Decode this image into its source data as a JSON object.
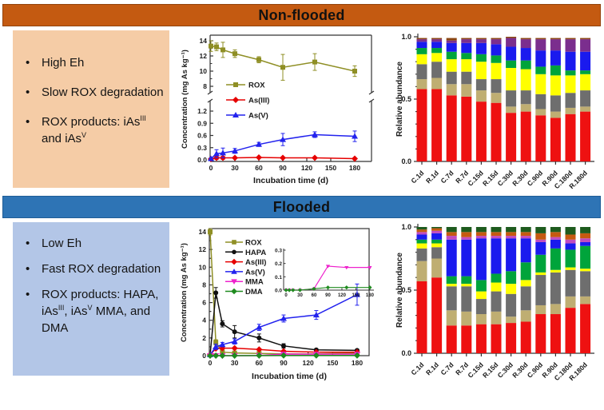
{
  "panels": {
    "nonflooded": {
      "title": "Non-flooded",
      "header_color": "#C45A11",
      "box_color": "#F5CCA6",
      "bullets": [
        [
          {
            "text": "High Eh"
          }
        ],
        [
          {
            "text": "Slow ROX degradation"
          }
        ],
        [
          {
            "text": "ROX products: iAs"
          },
          {
            "text": "III",
            "sup": true
          },
          {
            "text": " and iAs"
          },
          {
            "text": "V",
            "sup": true
          }
        ]
      ]
    },
    "flooded": {
      "title": "Flooded",
      "header_color": "#2E74B5",
      "box_color": "#B3C6E7",
      "bullets": [
        [
          {
            "text": "Low Eh"
          }
        ],
        [
          {
            "text": "Fast ROX degradation"
          }
        ],
        [
          {
            "text": "ROX products: HAPA, iAs"
          },
          {
            "text": "III",
            "sup": true
          },
          {
            "text": ", iAs"
          },
          {
            "text": "V",
            "sup": true
          },
          {
            "text": " MMA, and DMA"
          }
        ]
      ]
    }
  },
  "chart_data": [
    {
      "id": "nonflooded-line",
      "type": "line",
      "title": "",
      "xlabel": "Incubation time (d)",
      "ylabel": "Concentration (mg As kg⁻¹)",
      "x_ticks": [
        0,
        30,
        60,
        90,
        120,
        150,
        180
      ],
      "broken_axis": {
        "upper_ticks": [
          8,
          10,
          12,
          14
        ],
        "lower_ticks": [
          "0.0",
          "0.3",
          "0.6",
          "0.9",
          "1.2"
        ],
        "upper_range": [
          8,
          14
        ],
        "lower_range": [
          0,
          1.2
        ]
      },
      "x": [
        0,
        7,
        15,
        30,
        60,
        90,
        130,
        180
      ],
      "series": [
        {
          "name": "ROX",
          "color": "#8F8F25",
          "marker": "square",
          "values": [
            13.3,
            13.2,
            12.8,
            12.3,
            11.5,
            10.5,
            11.2,
            10.0
          ],
          "errors": [
            0.7,
            0.5,
            1.0,
            0.5,
            0.4,
            1.7,
            1.1,
            0.7
          ]
        },
        {
          "name": "As(III)",
          "color": "#E60000",
          "marker": "diamond",
          "values": [
            0.02,
            0.05,
            0.05,
            0.05,
            0.06,
            0.05,
            0.05,
            0.03
          ],
          "errors": [
            0.02,
            0.04,
            0.04,
            0.02,
            0.02,
            0.02,
            0.02,
            0.02
          ]
        },
        {
          "name": "As(V)",
          "color": "#2222EE",
          "marker": "triangle",
          "values": [
            0.03,
            0.15,
            0.17,
            0.22,
            0.38,
            0.5,
            0.62,
            0.58
          ],
          "errors": [
            0.02,
            0.1,
            0.12,
            0.06,
            0.05,
            0.15,
            0.07,
            0.13
          ]
        }
      ]
    },
    {
      "id": "nonflooded-bars",
      "type": "bar",
      "stacked": true,
      "ylabel": "Relative abundance",
      "y_ticks": [
        "0.0",
        "0.5",
        "1.0"
      ],
      "ylim": [
        0,
        1
      ],
      "categories": [
        "C.1d",
        "R.1d",
        "C.7d",
        "R.7d",
        "C.15d",
        "R.15d",
        "C.30d",
        "R.30d",
        "C.90d",
        "R.90d",
        "C.180d",
        "R.180d"
      ],
      "series": [
        {
          "name": "taxon-red",
          "color": "#EE1111",
          "values": [
            0.58,
            0.58,
            0.53,
            0.52,
            0.48,
            0.47,
            0.39,
            0.4,
            0.37,
            0.35,
            0.38,
            0.4
          ]
        },
        {
          "name": "taxon-tan",
          "color": "#BFAE72",
          "values": [
            0.08,
            0.09,
            0.09,
            0.1,
            0.09,
            0.08,
            0.05,
            0.06,
            0.05,
            0.05,
            0.05,
            0.04
          ]
        },
        {
          "name": "taxon-gray",
          "color": "#6E6E6E",
          "values": [
            0.12,
            0.13,
            0.1,
            0.1,
            0.09,
            0.11,
            0.13,
            0.11,
            0.12,
            0.13,
            0.12,
            0.13
          ]
        },
        {
          "name": "taxon-yellow",
          "color": "#FFFF00",
          "values": [
            0.08,
            0.07,
            0.1,
            0.1,
            0.14,
            0.13,
            0.18,
            0.17,
            0.16,
            0.16,
            0.14,
            0.13
          ]
        },
        {
          "name": "taxon-green",
          "color": "#00A43B",
          "values": [
            0.05,
            0.04,
            0.06,
            0.05,
            0.06,
            0.06,
            0.06,
            0.07,
            0.06,
            0.08,
            0.04,
            0.03
          ]
        },
        {
          "name": "taxon-blue",
          "color": "#1A1AEE",
          "values": [
            0.05,
            0.05,
            0.07,
            0.08,
            0.09,
            0.09,
            0.11,
            0.1,
            0.13,
            0.12,
            0.15,
            0.15
          ]
        },
        {
          "name": "taxon-purple",
          "color": "#7B2E8E",
          "values": [
            0.02,
            0.02,
            0.02,
            0.03,
            0.03,
            0.04,
            0.07,
            0.07,
            0.09,
            0.09,
            0.1,
            0.1
          ]
        },
        {
          "name": "taxon-brown",
          "color": "#8A4513",
          "values": [
            0.01,
            0.01,
            0.02,
            0.01,
            0.01,
            0.01,
            0.01,
            0.01,
            0.01,
            0.01,
            0.01,
            0.01
          ]
        }
      ]
    },
    {
      "id": "flooded-line",
      "type": "line",
      "title": "",
      "xlabel": "Incubation time (d)",
      "ylabel": "Concentration (mg As kg⁻¹)",
      "x_ticks": [
        0,
        30,
        60,
        90,
        120,
        150,
        180
      ],
      "y_ticks": [
        0,
        2,
        4,
        6,
        8,
        10,
        12,
        14
      ],
      "ylim": [
        0,
        14
      ],
      "x": [
        0,
        7,
        15,
        30,
        60,
        90,
        130,
        180
      ],
      "series": [
        {
          "name": "ROX",
          "color": "#8F8F25",
          "marker": "square",
          "values": [
            14.0,
            1.5,
            0.4,
            0.3,
            0.25,
            0.2,
            0.2,
            0.3
          ],
          "errors": [
            0.35,
            0.3,
            0.1,
            0.05,
            0.05,
            0.05,
            0.05,
            0.05
          ]
        },
        {
          "name": "HAPA",
          "color": "#111111",
          "marker": "circle",
          "values": [
            0.05,
            7.1,
            3.6,
            2.7,
            2.0,
            1.1,
            0.65,
            0.6
          ],
          "errors": [
            0.05,
            0.6,
            0.35,
            0.7,
            0.45,
            0.25,
            0.1,
            0.1
          ]
        },
        {
          "name": "As(III)",
          "color": "#E60000",
          "marker": "diamond",
          "values": [
            0.1,
            0.8,
            0.85,
            0.85,
            0.7,
            0.5,
            0.4,
            0.4
          ],
          "errors": [
            0.05,
            0.1,
            0.1,
            0.1,
            0.1,
            0.1,
            0.05,
            0.05
          ]
        },
        {
          "name": "As(V)",
          "color": "#2222EE",
          "marker": "triangle",
          "values": [
            0.1,
            1.0,
            1.25,
            1.6,
            3.2,
            4.2,
            4.6,
            6.9
          ],
          "errors": [
            0.05,
            0.3,
            0.25,
            0.3,
            0.35,
            0.4,
            0.5,
            1.2
          ]
        },
        {
          "name": "MMA",
          "color": "#EE22CC",
          "marker": "triangle-down",
          "values": [
            0,
            0,
            0,
            0,
            0.01,
            0.18,
            0.17,
            0.17
          ],
          "errors": [
            0,
            0,
            0,
            0,
            0,
            0.01,
            0.01,
            0.01
          ]
        },
        {
          "name": "DMA",
          "color": "#1F8B1F",
          "marker": "diamond",
          "values": [
            0,
            0,
            0,
            0,
            0.01,
            0.02,
            0.02,
            0.02
          ],
          "errors": [
            0,
            0,
            0,
            0,
            0,
            0,
            0,
            0
          ]
        }
      ],
      "inset": {
        "x_ticks": [
          0,
          30,
          60,
          90,
          120,
          150,
          180
        ],
        "y_ticks": [
          "0.0",
          "0.1",
          "0.2",
          "0.3"
        ],
        "ylim": [
          0,
          0.3
        ],
        "series": [
          "MMA",
          "DMA"
        ]
      }
    },
    {
      "id": "flooded-bars",
      "type": "bar",
      "stacked": true,
      "ylabel": "Relative abundance",
      "y_ticks": [
        "0.0",
        "0.5",
        "1.0"
      ],
      "ylim": [
        0,
        1
      ],
      "categories": [
        "C.1d",
        "R.1d",
        "C.7d",
        "R.7d",
        "C.15d",
        "R.15d",
        "C.30d",
        "R.30d",
        "C.90d",
        "R.90d",
        "C.180d",
        "R.180d"
      ],
      "series": [
        {
          "name": "taxon-red",
          "color": "#EE1111",
          "values": [
            0.57,
            0.6,
            0.22,
            0.22,
            0.23,
            0.23,
            0.24,
            0.25,
            0.31,
            0.31,
            0.36,
            0.39
          ]
        },
        {
          "name": "taxon-tan",
          "color": "#BFAE72",
          "values": [
            0.16,
            0.15,
            0.12,
            0.11,
            0.08,
            0.1,
            0.05,
            0.09,
            0.07,
            0.08,
            0.09,
            0.06
          ]
        },
        {
          "name": "taxon-gray",
          "color": "#6E6E6E",
          "values": [
            0.1,
            0.09,
            0.19,
            0.2,
            0.12,
            0.16,
            0.18,
            0.19,
            0.24,
            0.25,
            0.21,
            0.2
          ]
        },
        {
          "name": "taxon-yellow",
          "color": "#FFFF00",
          "values": [
            0.04,
            0.03,
            0.02,
            0.02,
            0.06,
            0.07,
            0.08,
            0.05,
            0.02,
            0.02,
            0.02,
            0.02
          ]
        },
        {
          "name": "taxon-green",
          "color": "#00A43B",
          "values": [
            0.03,
            0.03,
            0.06,
            0.06,
            0.09,
            0.07,
            0.1,
            0.14,
            0.14,
            0.17,
            0.14,
            0.18
          ]
        },
        {
          "name": "taxon-blue",
          "color": "#1A1AEE",
          "values": [
            0.04,
            0.05,
            0.29,
            0.29,
            0.33,
            0.28,
            0.26,
            0.19,
            0.1,
            0.07,
            0.05,
            0.03
          ]
        },
        {
          "name": "taxon-magenta",
          "color": "#C04BC0",
          "values": [
            0.02,
            0.02,
            0.03,
            0.02,
            0.02,
            0.02,
            0.02,
            0.02,
            0.02,
            0.02,
            0.03,
            0.03
          ]
        },
        {
          "name": "taxon-orange",
          "color": "#C55A11",
          "values": [
            0.02,
            0.02,
            0.03,
            0.04,
            0.03,
            0.03,
            0.03,
            0.03,
            0.05,
            0.04,
            0.04,
            0.04
          ]
        },
        {
          "name": "taxon-darkgreen",
          "color": "#1E5B1E",
          "values": [
            0.02,
            0.01,
            0.04,
            0.04,
            0.04,
            0.04,
            0.04,
            0.04,
            0.05,
            0.04,
            0.06,
            0.05
          ]
        }
      ]
    }
  ]
}
